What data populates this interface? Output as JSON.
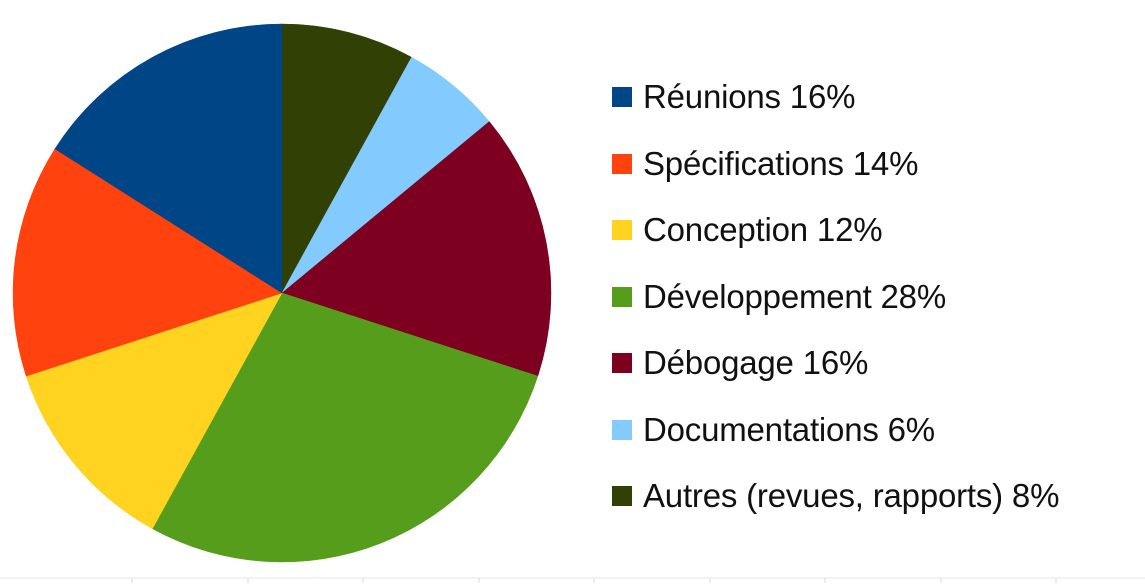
{
  "chart_data": {
    "type": "pie",
    "title": "",
    "start_angle_deg": 0,
    "direction": "clockwise",
    "legend_position": "right",
    "slices": [
      {
        "label": "Réunions 16%",
        "value": 16,
        "color": "#004586"
      },
      {
        "label": "Spécifications 14%",
        "value": 14,
        "color": "#ff420e"
      },
      {
        "label": "Conception 12%",
        "value": 12,
        "color": "#ffd320"
      },
      {
        "label": "Développement 28%",
        "value": 28,
        "color": "#579d1c"
      },
      {
        "label": "Débogage 16%",
        "value": 16,
        "color": "#7e0021"
      },
      {
        "label": "Documentations 6%",
        "value": 6,
        "color": "#83caff"
      },
      {
        "label": "Autres (revues, rapports) 8%",
        "value": 8,
        "color": "#314004"
      }
    ],
    "pie_sequence": [
      6,
      5,
      4,
      3,
      2,
      1,
      0
    ]
  }
}
